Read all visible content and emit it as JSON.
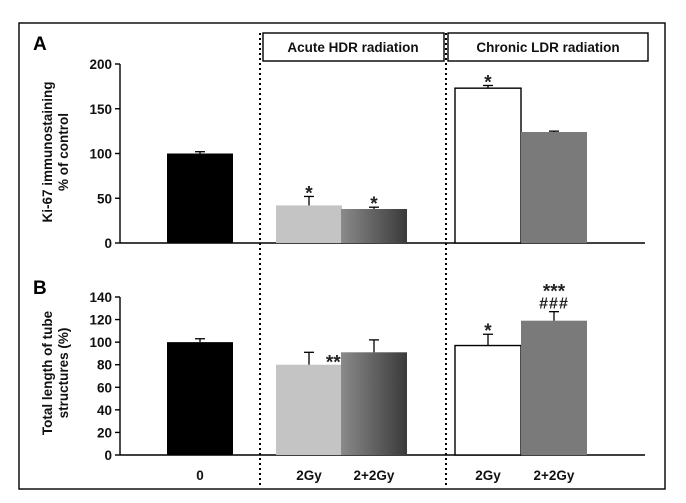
{
  "colors": {
    "control": "#000000",
    "acute_2gy": "#c4c4c4",
    "acute_2p2gy_start": "#8a8a8a",
    "acute_2p2gy_end": "#3a3a3a",
    "chronic_2gy": "#ffffff",
    "chronic_2p2gy": "#7a7a7a",
    "outline": "#000000"
  },
  "headers": {
    "acute": "Acute HDR radiation",
    "chronic": "Chronic LDR radiation"
  },
  "chart_data": [
    {
      "type": "bar",
      "panel_label": "A",
      "ylabel": [
        "Ki-67 immunostaining",
        "% of control"
      ],
      "ylim": [
        0,
        200
      ],
      "yticks": [
        0,
        50,
        100,
        150,
        200
      ],
      "bars": [
        {
          "group": "control",
          "value": 100,
          "error": 2,
          "annotation": "",
          "annotation2": ""
        },
        {
          "group": "acute_2gy",
          "value": 42,
          "error": 10,
          "annotation": "*",
          "annotation2": ""
        },
        {
          "group": "acute_2p2gy",
          "value": 38,
          "error": 2,
          "annotation": "*",
          "annotation2": ""
        },
        {
          "group": "chronic_2gy",
          "value": 173,
          "error": 3,
          "annotation": "*",
          "annotation2": ""
        },
        {
          "group": "chronic_2p2gy",
          "value": 124,
          "error": 1,
          "annotation": "",
          "annotation2": ""
        }
      ]
    },
    {
      "type": "bar",
      "panel_label": "B",
      "ylabel": [
        "Total length of tube",
        "structures (%)"
      ],
      "ylim": [
        0,
        140
      ],
      "yticks": [
        0,
        20,
        40,
        60,
        80,
        100,
        120,
        140
      ],
      "categories": [
        "0",
        "2Gy",
        "2+2Gy",
        "2Gy",
        "2+2Gy"
      ],
      "bars": [
        {
          "group": "control",
          "value": 100,
          "error": 3,
          "annotation": "",
          "annotation2": ""
        },
        {
          "group": "acute_2gy",
          "value": 80,
          "error": 11,
          "annotation": "***",
          "annotation2": ""
        },
        {
          "group": "acute_2p2gy",
          "value": 91,
          "error": 11,
          "annotation": "",
          "annotation2": ""
        },
        {
          "group": "chronic_2gy",
          "value": 97,
          "error": 10,
          "annotation": "*",
          "annotation2": ""
        },
        {
          "group": "chronic_2p2gy",
          "value": 119,
          "error": 8,
          "annotation": "***",
          "annotation2": "###"
        }
      ]
    }
  ]
}
